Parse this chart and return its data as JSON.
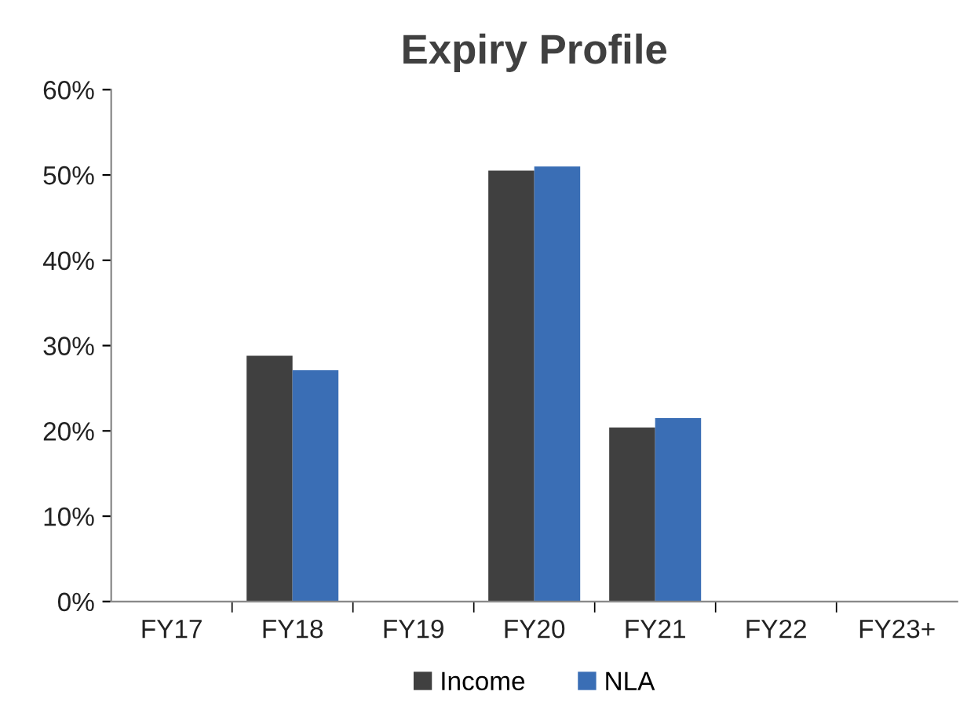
{
  "chart_data": {
    "type": "bar",
    "title": "Expiry Profile",
    "categories": [
      "FY17",
      "FY18",
      "FY19",
      "FY20",
      "FY21",
      "FY22",
      "FY23+"
    ],
    "series": [
      {
        "name": "Income",
        "color": "#404040",
        "values": [
          0,
          28.8,
          0,
          50.5,
          20.4,
          0,
          0
        ]
      },
      {
        "name": "NLA",
        "color": "#3a6eb5",
        "values": [
          0,
          27.1,
          0,
          51.0,
          21.5,
          0,
          0
        ]
      }
    ],
    "ylim": [
      0,
      60
    ],
    "yticks": [
      {
        "value": 0,
        "label": "0%"
      },
      {
        "value": 10,
        "label": "10%"
      },
      {
        "value": 20,
        "label": "20%"
      },
      {
        "value": 30,
        "label": "30%"
      },
      {
        "value": 40,
        "label": "40%"
      },
      {
        "value": 50,
        "label": "50%"
      },
      {
        "value": 60,
        "label": "60%"
      }
    ],
    "grid": false,
    "legend": "bottom"
  }
}
